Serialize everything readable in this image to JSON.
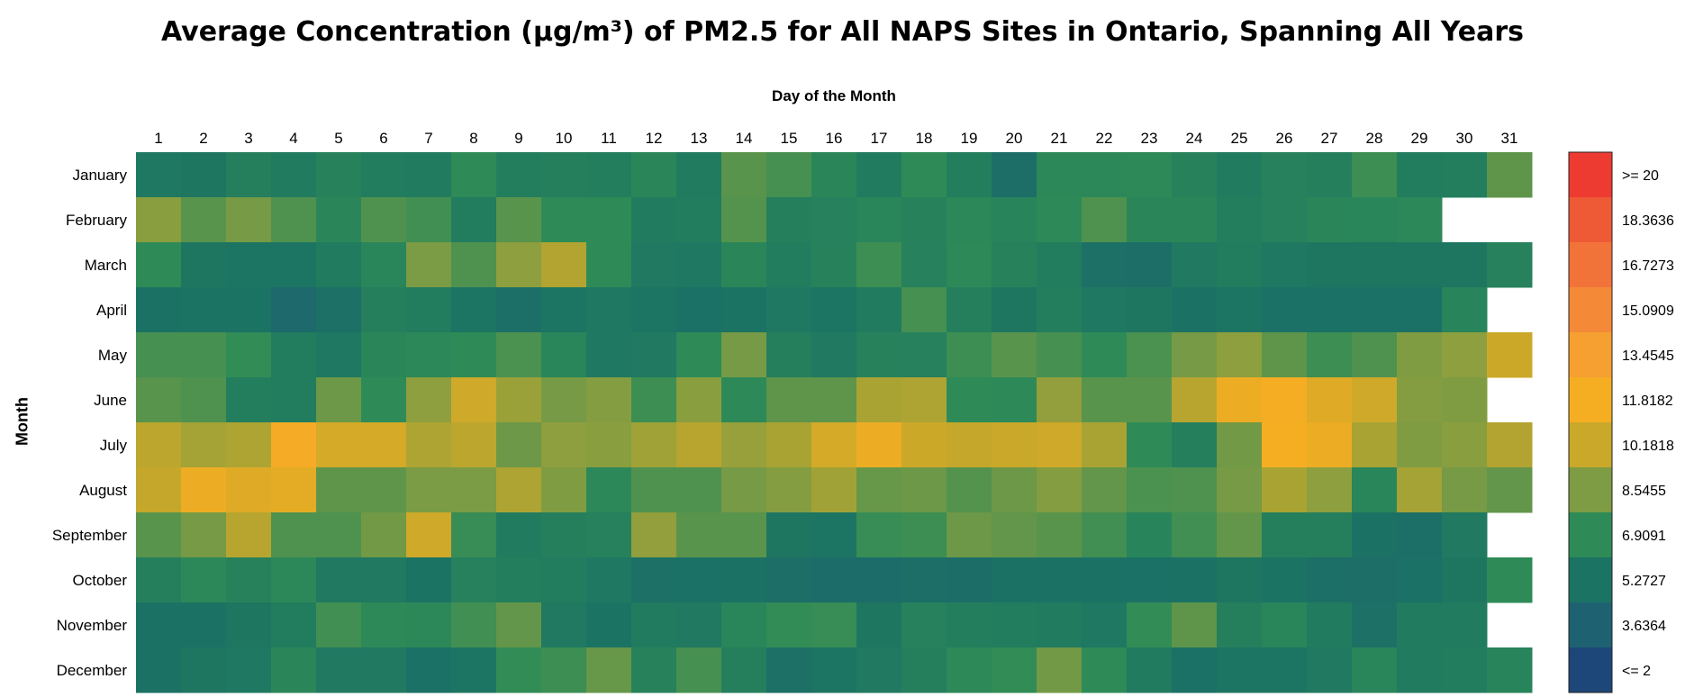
{
  "chart_data": {
    "type": "heatmap",
    "title": "Average Concentration (µg/m³) of PM2.5 for All NAPS Sites in Ontario, Spanning All Years",
    "xlabel": "Day of the Month",
    "ylabel": "Month",
    "x": [
      "1",
      "2",
      "3",
      "4",
      "5",
      "6",
      "7",
      "8",
      "9",
      "10",
      "11",
      "12",
      "13",
      "14",
      "15",
      "16",
      "17",
      "18",
      "19",
      "20",
      "21",
      "22",
      "23",
      "24",
      "25",
      "26",
      "27",
      "28",
      "29",
      "30",
      "31"
    ],
    "y": [
      "January",
      "February",
      "March",
      "April",
      "May",
      "June",
      "July",
      "August",
      "September",
      "October",
      "November",
      "December"
    ],
    "z": [
      [
        5.6,
        5.5,
        6.1,
        5.8,
        6.3,
        5.9,
        5.8,
        6.9,
        6.0,
        6.1,
        6.0,
        6.6,
        5.8,
        7.8,
        7.4,
        6.6,
        5.8,
        6.9,
        6.0,
        4.8,
        6.7,
        6.7,
        6.8,
        6.3,
        5.8,
        6.2,
        6.1,
        7.2,
        5.9,
        6.0,
        7.9
      ],
      [
        8.8,
        7.8,
        8.4,
        7.6,
        6.6,
        7.6,
        7.3,
        5.9,
        7.8,
        6.9,
        6.9,
        5.8,
        5.9,
        7.7,
        6.1,
        6.2,
        6.5,
        6.3,
        6.7,
        6.4,
        6.8,
        7.6,
        6.6,
        6.6,
        6.0,
        6.2,
        6.6,
        6.5,
        6.7,
        null,
        null
      ],
      [
        6.9,
        5.5,
        5.4,
        5.4,
        5.8,
        6.5,
        8.5,
        7.6,
        8.9,
        9.7,
        6.9,
        5.7,
        5.6,
        6.6,
        5.9,
        6.3,
        7.2,
        6.2,
        6.8,
        6.3,
        5.9,
        5.0,
        4.8,
        5.7,
        5.9,
        5.6,
        5.5,
        5.5,
        5.5,
        5.5,
        6.2
      ],
      [
        5.2,
        5.3,
        5.3,
        4.3,
        5.0,
        6.1,
        5.9,
        5.4,
        4.9,
        5.4,
        5.6,
        5.4,
        5.1,
        5.3,
        5.6,
        5.4,
        5.8,
        7.4,
        6.1,
        5.5,
        6.0,
        5.6,
        5.5,
        5.2,
        5.4,
        5.1,
        5.1,
        5.1,
        5.1,
        6.4,
        null
      ],
      [
        7.4,
        7.4,
        7.0,
        5.9,
        5.6,
        6.6,
        6.7,
        6.9,
        7.5,
        6.5,
        5.6,
        5.7,
        6.9,
        8.4,
        6.1,
        5.7,
        6.3,
        6.2,
        7.2,
        7.8,
        7.4,
        6.9,
        7.5,
        8.4,
        8.9,
        7.9,
        7.2,
        7.6,
        8.6,
        8.9,
        10.3
      ],
      [
        7.8,
        7.6,
        6.0,
        5.9,
        8.2,
        6.9,
        8.9,
        10.4,
        9.2,
        8.4,
        8.7,
        7.2,
        8.8,
        6.8,
        7.9,
        7.9,
        9.5,
        9.6,
        6.9,
        6.8,
        9.0,
        7.8,
        7.8,
        9.8,
        11.5,
        11.9,
        11.0,
        10.4,
        8.7,
        8.6,
        null
      ],
      [
        9.9,
        9.4,
        9.6,
        12.2,
        10.6,
        10.6,
        9.6,
        9.9,
        8.2,
        8.9,
        8.8,
        9.3,
        9.8,
        9.1,
        9.5,
        10.6,
        11.5,
        10.3,
        10.1,
        10.2,
        10.4,
        9.5,
        6.9,
        6.1,
        8.3,
        11.8,
        11.5,
        9.5,
        8.6,
        8.8,
        9.7
      ],
      [
        10.1,
        11.5,
        11.0,
        11.2,
        7.9,
        7.9,
        8.5,
        8.5,
        9.6,
        8.6,
        6.7,
        7.6,
        7.6,
        8.4,
        8.7,
        9.3,
        8.1,
        8.2,
        7.7,
        8.2,
        8.7,
        8.0,
        7.5,
        7.6,
        8.4,
        9.5,
        8.9,
        6.5,
        9.4,
        8.4,
        8.0
      ],
      [
        7.8,
        8.4,
        9.8,
        7.6,
        7.6,
        8.3,
        10.4,
        7.1,
        5.8,
        6.1,
        6.2,
        9.0,
        7.8,
        7.8,
        5.5,
        5.4,
        7.1,
        7.2,
        8.2,
        8.0,
        7.8,
        7.3,
        6.4,
        7.3,
        8.0,
        6.1,
        6.1,
        5.2,
        4.9,
        5.7,
        null
      ],
      [
        6.1,
        6.7,
        6.3,
        6.7,
        5.7,
        5.7,
        5.3,
        6.2,
        6.0,
        5.9,
        5.6,
        5.0,
        5.1,
        5.2,
        4.8,
        4.6,
        4.6,
        4.8,
        4.7,
        5.2,
        5.2,
        5.2,
        5.1,
        5.2,
        5.5,
        5.3,
        4.9,
        4.8,
        5.1,
        5.5,
        6.9
      ],
      [
        5.2,
        5.2,
        5.5,
        5.9,
        7.3,
        6.8,
        6.7,
        7.3,
        8.0,
        5.7,
        5.3,
        5.8,
        5.7,
        6.5,
        7.0,
        7.1,
        5.5,
        6.2,
        6.0,
        5.9,
        5.8,
        5.6,
        7.0,
        7.9,
        6.1,
        6.5,
        5.8,
        5.0,
        5.8,
        5.8,
        null
      ],
      [
        5.2,
        5.5,
        5.6,
        6.6,
        5.7,
        5.7,
        5.1,
        5.4,
        7.0,
        7.2,
        8.1,
        6.3,
        7.4,
        6.1,
        5.0,
        5.4,
        5.7,
        6.1,
        6.8,
        7.0,
        8.3,
        6.9,
        5.8,
        5.1,
        5.4,
        5.4,
        5.7,
        6.5,
        5.8,
        5.9,
        6.4
      ]
    ],
    "colorbar": {
      "labels": [
        ">= 20",
        "18.3636",
        "16.7273",
        "15.0909",
        "13.4545",
        "11.8182",
        "10.1818",
        "8.5455",
        "6.9091",
        "5.2727",
        "3.6364",
        "<= 2"
      ],
      "colors": [
        "#ee3b31",
        "#ef5a36",
        "#f2733a",
        "#f48a38",
        "#f5a031",
        "#f5ae22",
        "#c9a82a",
        "#7d9c43",
        "#2e8b57",
        "#1b7363",
        "#1e6272",
        "#1c4778"
      ]
    }
  }
}
